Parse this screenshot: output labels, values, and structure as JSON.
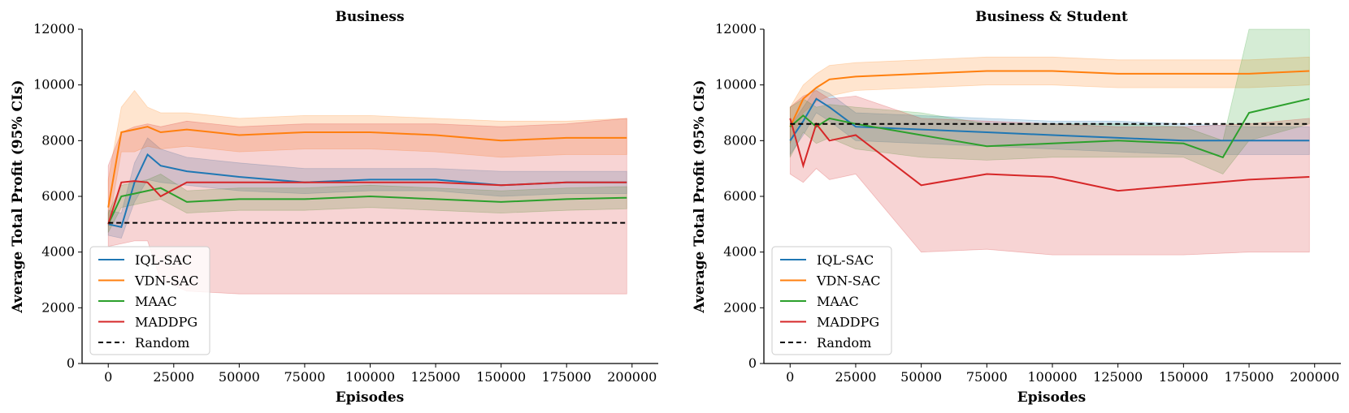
{
  "chart_data": [
    {
      "type": "line",
      "title": "Business",
      "xlabel": "Episodes",
      "ylabel": "Average Total Profit (95% CIs)",
      "xlim": [
        -10000,
        210000
      ],
      "ylim": [
        0,
        12000
      ],
      "xticks": [
        "0",
        "25000",
        "50000",
        "75000",
        "100000",
        "125000",
        "150000",
        "175000",
        "200000"
      ],
      "yticks": [
        "0",
        "2000",
        "4000",
        "6000",
        "8000",
        "10000",
        "12000"
      ],
      "legend_position": "lower-left",
      "series": [
        {
          "name": "IQL-SAC",
          "color": "#1f77b4",
          "style": "solid",
          "x": [
            0,
            5000,
            10000,
            15000,
            20000,
            30000,
            50000,
            75000,
            100000,
            125000,
            150000,
            175000,
            198000
          ],
          "y": [
            5000,
            4900,
            6500,
            7500,
            7100,
            6900,
            6700,
            6500,
            6600,
            6600,
            6400,
            6500,
            6500
          ],
          "ci_lower": [
            4600,
            4500,
            5800,
            6600,
            6500,
            6400,
            6200,
            6100,
            6200,
            6200,
            6000,
            6100,
            6100
          ],
          "ci_upper": [
            5500,
            5400,
            7200,
            8100,
            7700,
            7400,
            7200,
            7000,
            7000,
            7000,
            6900,
            6900,
            6900
          ]
        },
        {
          "name": "VDN-SAC",
          "color": "#ff7f0e",
          "style": "solid",
          "x": [
            0,
            5000,
            10000,
            15000,
            20000,
            30000,
            50000,
            75000,
            100000,
            125000,
            150000,
            175000,
            198000
          ],
          "y": [
            5600,
            8300,
            8400,
            8500,
            8300,
            8400,
            8200,
            8300,
            8300,
            8200,
            8000,
            8100,
            8100
          ],
          "ci_lower": [
            4900,
            7600,
            7600,
            7800,
            7700,
            7800,
            7600,
            7700,
            7700,
            7600,
            7400,
            7500,
            7500
          ],
          "ci_upper": [
            6600,
            9200,
            9800,
            9200,
            9000,
            9000,
            8800,
            8900,
            8900,
            8800,
            8700,
            8700,
            8800
          ]
        },
        {
          "name": "MAAC",
          "color": "#2ca02c",
          "style": "solid",
          "x": [
            0,
            5000,
            10000,
            15000,
            20000,
            30000,
            50000,
            75000,
            100000,
            125000,
            150000,
            175000,
            198000
          ],
          "y": [
            5000,
            6000,
            6100,
            6200,
            6300,
            5800,
            5900,
            5900,
            6000,
            5900,
            5800,
            5900,
            5950
          ],
          "ci_lower": [
            4700,
            5600,
            5700,
            5800,
            5900,
            5400,
            5500,
            5500,
            5600,
            5500,
            5400,
            5500,
            5550
          ],
          "ci_upper": [
            5400,
            6400,
            6500,
            6600,
            6800,
            6200,
            6300,
            6300,
            6400,
            6300,
            6200,
            6300,
            6350
          ]
        },
        {
          "name": "MADDPG",
          "color": "#d62728",
          "style": "solid",
          "x": [
            0,
            5000,
            10000,
            15000,
            20000,
            30000,
            50000,
            75000,
            100000,
            125000,
            150000,
            175000,
            198000
          ],
          "y": [
            5000,
            6500,
            6550,
            6500,
            6000,
            6500,
            6500,
            6500,
            6500,
            6500,
            6400,
            6500,
            6500
          ],
          "ci_lower": [
            4200,
            4300,
            4400,
            4400,
            3000,
            2600,
            2500,
            2500,
            2500,
            2500,
            2500,
            2500,
            2500
          ],
          "ci_upper": [
            7100,
            8300,
            8500,
            8600,
            8500,
            8700,
            8500,
            8600,
            8600,
            8600,
            8500,
            8600,
            8800
          ]
        },
        {
          "name": "Random",
          "color": "#000000",
          "style": "dashed",
          "x": [
            0,
            198000
          ],
          "y": [
            5050,
            5050
          ]
        }
      ]
    },
    {
      "type": "line",
      "title": "Business & Student",
      "xlabel": "Episodes",
      "ylabel": "Average Total Profit (95% CIs)",
      "xlim": [
        -10000,
        210000
      ],
      "ylim": [
        0,
        12000
      ],
      "xticks": [
        "0",
        "25000",
        "50000",
        "75000",
        "100000",
        "125000",
        "150000",
        "175000",
        "200000"
      ],
      "yticks": [
        "0",
        "2000",
        "4000",
        "6000",
        "8000",
        "10000",
        "12000"
      ],
      "legend_position": "lower-left",
      "series": [
        {
          "name": "IQL-SAC",
          "color": "#1f77b4",
          "style": "solid",
          "x": [
            0,
            5000,
            10000,
            15000,
            25000,
            50000,
            75000,
            100000,
            125000,
            150000,
            175000,
            198000
          ],
          "y": [
            8000,
            8700,
            9500,
            9200,
            8500,
            8400,
            8300,
            8200,
            8100,
            8000,
            8000,
            8000
          ],
          "ci_lower": [
            7500,
            8200,
            9000,
            8700,
            8000,
            7900,
            7800,
            7700,
            7600,
            7500,
            7500,
            7500
          ],
          "ci_upper": [
            8500,
            9200,
            9900,
            9700,
            9000,
            8900,
            8800,
            8700,
            8700,
            8600,
            8500,
            8500
          ]
        },
        {
          "name": "VDN-SAC",
          "color": "#ff7f0e",
          "style": "solid",
          "x": [
            0,
            5000,
            10000,
            15000,
            25000,
            50000,
            75000,
            100000,
            125000,
            150000,
            175000,
            198000
          ],
          "y": [
            8500,
            9500,
            9900,
            10200,
            10300,
            10400,
            10500,
            10500,
            10400,
            10400,
            10400,
            10500
          ],
          "ci_lower": [
            7900,
            9000,
            9400,
            9600,
            9800,
            9900,
            10000,
            10000,
            9900,
            9900,
            9900,
            10000
          ],
          "ci_upper": [
            9200,
            10000,
            10400,
            10700,
            10800,
            10900,
            11000,
            11000,
            10900,
            10900,
            10900,
            11000
          ]
        },
        {
          "name": "MAAC",
          "color": "#2ca02c",
          "style": "solid",
          "x": [
            0,
            5000,
            10000,
            15000,
            25000,
            50000,
            75000,
            100000,
            125000,
            150000,
            165000,
            175000,
            198000
          ],
          "y": [
            8500,
            8900,
            8500,
            8800,
            8600,
            8200,
            7800,
            7900,
            8000,
            7900,
            7400,
            9000,
            9500
          ],
          "ci_lower": [
            7400,
            8300,
            7900,
            8100,
            7700,
            7400,
            7300,
            7400,
            7400,
            7400,
            6800,
            8000,
            8600
          ],
          "ci_upper": [
            9200,
            9500,
            9200,
            9300,
            9200,
            9000,
            8600,
            8600,
            8600,
            8500,
            8000,
            12000,
            12000
          ]
        },
        {
          "name": "MADDPG",
          "color": "#d62728",
          "style": "solid",
          "x": [
            0,
            5000,
            10000,
            15000,
            25000,
            50000,
            75000,
            100000,
            125000,
            150000,
            175000,
            198000
          ],
          "y": [
            8800,
            7100,
            8600,
            8000,
            8200,
            6400,
            6800,
            6700,
            6200,
            6400,
            6600,
            6700
          ],
          "ci_lower": [
            6800,
            6500,
            7000,
            6600,
            6800,
            4000,
            4100,
            3900,
            3900,
            3900,
            4000,
            4000
          ],
          "ci_upper": [
            9200,
            9600,
            9800,
            9500,
            9600,
            8800,
            8700,
            8600,
            8500,
            8500,
            8600,
            8800
          ]
        },
        {
          "name": "Random",
          "color": "#000000",
          "style": "dashed",
          "x": [
            0,
            198000
          ],
          "y": [
            8600,
            8600
          ]
        }
      ]
    }
  ]
}
